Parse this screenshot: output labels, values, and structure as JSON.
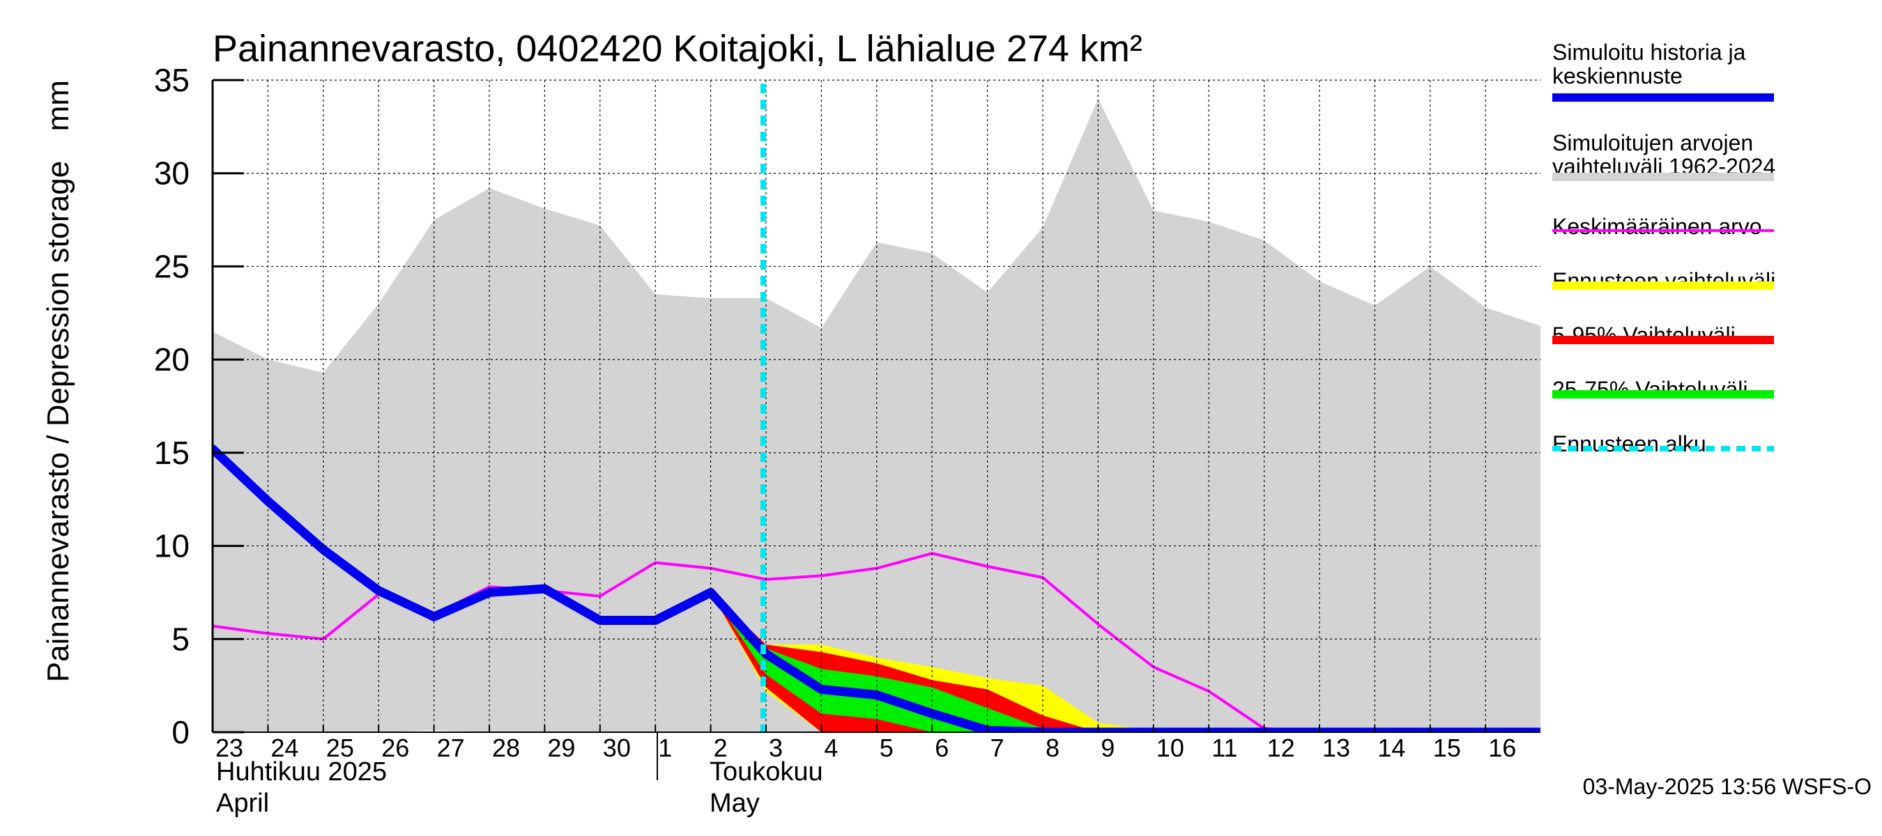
{
  "chart_data": {
    "type": "area",
    "title": "Painannevarasto, 0402420 Koitajoki, L lähialue 274 km²",
    "ylabel": "Painannevarasto / Depression storage",
    "yunit": "mm",
    "ylim": [
      0,
      35
    ],
    "yticks": [
      0,
      5,
      10,
      15,
      20,
      25,
      30,
      35
    ],
    "grid": true,
    "legend_position": "right",
    "x_dates": [
      "2025-04-23",
      "2025-04-24",
      "2025-04-25",
      "2025-04-26",
      "2025-04-27",
      "2025-04-28",
      "2025-04-29",
      "2025-04-30",
      "2025-05-01",
      "2025-05-02",
      "2025-05-03",
      "2025-05-04",
      "2025-05-05",
      "2025-05-06",
      "2025-05-07",
      "2025-05-08",
      "2025-05-09",
      "2025-05-10",
      "2025-05-11",
      "2025-05-12",
      "2025-05-13",
      "2025-05-14",
      "2025-05-15",
      "2025-05-16",
      "2025-05-17"
    ],
    "day_labels": [
      "23",
      "24",
      "25",
      "26",
      "27",
      "28",
      "29",
      "30",
      "1",
      "2",
      "3",
      "4",
      "5",
      "6",
      "7",
      "8",
      "9",
      "10",
      "11",
      "12",
      "13",
      "14",
      "15",
      "16"
    ],
    "month_labels": [
      {
        "fi": "Huhtikuu  2025",
        "en": "April"
      },
      {
        "fi": "Toukokuu",
        "en": "May"
      }
    ],
    "forecast_start": "2025-05-03",
    "series": [
      {
        "name": "Simuloitu historia ja keskiennuste",
        "color": "#0000ee",
        "type": "line",
        "values": [
          15.2,
          12.4,
          9.8,
          7.6,
          6.2,
          7.5,
          7.7,
          6.0,
          6.0,
          7.5,
          4.2,
          2.3,
          2.0,
          1.0,
          0.1,
          0.0,
          0.0,
          0.0,
          0.0,
          0.0,
          0.0,
          0.0,
          0.0,
          0.0,
          0.0
        ]
      },
      {
        "name": "Simuloitujen arvojen vaihteluväli 1962-2024",
        "color": "#d3d3d3",
        "type": "band",
        "upper": [
          21.5,
          20.0,
          19.3,
          23.0,
          27.5,
          29.2,
          28.1,
          27.2,
          23.5,
          23.3,
          23.3,
          21.7,
          26.3,
          25.7,
          23.6,
          27.1,
          34.0,
          28.0,
          27.4,
          26.4,
          24.2,
          22.9,
          25.0,
          22.8,
          21.8
        ],
        "lower": [
          0,
          0,
          0,
          0,
          0.1,
          0,
          0,
          0,
          0,
          0,
          0,
          0,
          0,
          0,
          0,
          0,
          0,
          0,
          0,
          0,
          0,
          0,
          0,
          0,
          0
        ]
      },
      {
        "name": "Keskimääräinen arvo",
        "color": "#ff00ff",
        "type": "line",
        "values": [
          5.7,
          5.3,
          5.0,
          7.4,
          6.3,
          7.8,
          7.6,
          7.3,
          9.1,
          8.8,
          8.2,
          8.4,
          8.8,
          9.6,
          8.9,
          8.3,
          5.8,
          3.5,
          2.2,
          0.2,
          0.05,
          0.05,
          0.05,
          0.05,
          0.05
        ]
      },
      {
        "name": "Ennusteen vaihteluväli",
        "color": "#ffff00",
        "type": "band",
        "x_start": "2025-05-02",
        "upper": [
          7.5,
          4.7,
          4.7,
          4.0,
          3.5,
          2.9,
          2.5,
          0.5,
          0.1
        ],
        "lower": [
          7.5,
          2.2,
          0.0,
          0.0,
          0.0,
          0.0,
          0.0,
          0.0,
          0.0
        ]
      },
      {
        "name": "5-95% Vaihteluväli",
        "color": "#ff0000",
        "type": "band",
        "x_start": "2025-05-02",
        "upper": [
          7.5,
          4.7,
          4.3,
          3.7,
          2.8,
          2.3,
          0.9,
          0.0,
          0.0
        ],
        "lower": [
          7.5,
          2.4,
          0.0,
          0.0,
          0.0,
          0.0,
          0.0,
          0.0,
          0.0
        ]
      },
      {
        "name": "25-75% Vaihteluväli",
        "color": "#00ee00",
        "type": "band",
        "x_start": "2025-05-02",
        "upper": [
          7.5,
          4.5,
          3.4,
          3.0,
          2.4,
          1.3,
          0.2,
          0.0,
          0.0
        ],
        "lower": [
          7.5,
          3.1,
          1.0,
          0.7,
          0.0,
          0.0,
          0.0,
          0.0,
          0.0
        ]
      },
      {
        "name": "Ennusteen alku",
        "color": "#00e5ee",
        "type": "vline"
      }
    ]
  },
  "footer": {
    "timestamp": "03-May-2025 13:56 WSFS-O"
  }
}
